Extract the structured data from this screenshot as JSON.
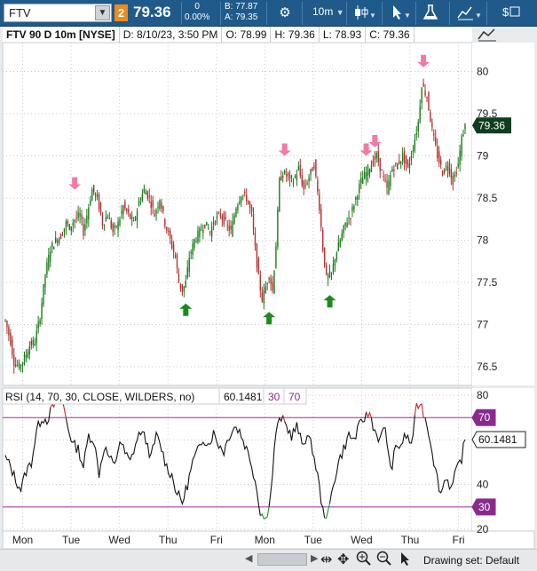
{
  "toolbar": {
    "symbol": "FTV",
    "link_number": "2",
    "last": "79.36",
    "change": "0",
    "change_pct": "0.00%",
    "bid": "B: 77.87",
    "ask": "A: 79.35",
    "interval": "10m",
    "icons": [
      "settings-gear-icon",
      "candlestick-icon",
      "cursor-icon",
      "flask-icon",
      "drawings-icon",
      "dollar-icon"
    ]
  },
  "header": {
    "desc": "FTV 90 D 10m [NYSE]",
    "date": "D: 8/10/23, 3:50 PM",
    "open": "O: 78.99",
    "high": "H: 79.36",
    "low": "L: 78.93",
    "close": "C: 79.36"
  },
  "footer": {
    "drawing_set": "Drawing set: Default"
  },
  "chart_data": [
    {
      "type": "candlestick",
      "price_axis": {
        "ticks": [
          80,
          79.5,
          79,
          78.5,
          78,
          77.5,
          77,
          76.5
        ],
        "range": [
          76.3,
          80.3
        ]
      },
      "last_price_label": "79.36",
      "x_ticks": [
        "Mon",
        "Tue",
        "Wed",
        "Thu",
        "Fri",
        "Mon",
        "Tue",
        "Wed",
        "Thu",
        "Fri"
      ],
      "close_path": [
        [
          0,
          77.05
        ],
        [
          3,
          76.8
        ],
        [
          5,
          76.55
        ],
        [
          8,
          76.5
        ],
        [
          11,
          76.6
        ],
        [
          14,
          76.75
        ],
        [
          17,
          76.8
        ],
        [
          20,
          77.1
        ],
        [
          23,
          77.6
        ],
        [
          26,
          77.9
        ],
        [
          29,
          78.0
        ],
        [
          32,
          78.05
        ],
        [
          35,
          78.2
        ],
        [
          37,
          78.15
        ],
        [
          40,
          78.25
        ],
        [
          43,
          78.3
        ],
        [
          45,
          78.1
        ],
        [
          48,
          78.4
        ],
        [
          50,
          78.6
        ],
        [
          53,
          78.5
        ],
        [
          56,
          78.2
        ],
        [
          59,
          78.3
        ],
        [
          62,
          78.1
        ],
        [
          65,
          78.2
        ],
        [
          68,
          78.4
        ],
        [
          71,
          78.3
        ],
        [
          74,
          78.2
        ],
        [
          77,
          78.45
        ],
        [
          80,
          78.6
        ],
        [
          83,
          78.5
        ],
        [
          86,
          78.3
        ],
        [
          89,
          78.5
        ],
        [
          92,
          78.2
        ],
        [
          95,
          78.0
        ],
        [
          98,
          77.8
        ],
        [
          100,
          77.5
        ],
        [
          102,
          77.4
        ],
        [
          104,
          77.5
        ],
        [
          106,
          77.8
        ],
        [
          109,
          78.0
        ],
        [
          112,
          78.1
        ],
        [
          115,
          78.2
        ],
        [
          118,
          78.1
        ],
        [
          121,
          78.25
        ],
        [
          124,
          78.3
        ],
        [
          127,
          78.2
        ],
        [
          130,
          78.1
        ],
        [
          133,
          78.4
        ],
        [
          136,
          78.55
        ],
        [
          139,
          78.5
        ],
        [
          142,
          78.3
        ],
        [
          144,
          77.9
        ],
        [
          146,
          77.55
        ],
        [
          148,
          77.3
        ],
        [
          150,
          77.45
        ],
        [
          152,
          77.6
        ],
        [
          154,
          77.4
        ],
        [
          156,
          77.95
        ],
        [
          158,
          78.7
        ],
        [
          160,
          78.8
        ],
        [
          163,
          78.75
        ],
        [
          166,
          78.7
        ],
        [
          169,
          78.85
        ],
        [
          172,
          78.6
        ],
        [
          175,
          78.75
        ],
        [
          178,
          78.9
        ],
        [
          181,
          78.4
        ],
        [
          183,
          77.9
        ],
        [
          185,
          77.55
        ],
        [
          188,
          77.6
        ],
        [
          190,
          77.8
        ],
        [
          193,
          78.0
        ],
        [
          196,
          78.2
        ],
        [
          199,
          78.3
        ],
        [
          202,
          78.5
        ],
        [
          205,
          78.7
        ],
        [
          208,
          78.8
        ],
        [
          211,
          78.9
        ],
        [
          214,
          79.0
        ],
        [
          217,
          78.8
        ],
        [
          220,
          78.6
        ],
        [
          223,
          78.85
        ],
        [
          226,
          78.9
        ],
        [
          229,
          79.0
        ],
        [
          232,
          78.85
        ],
        [
          235,
          79.1
        ],
        [
          238,
          79.4
        ],
        [
          240,
          79.85
        ],
        [
          243,
          79.7
        ],
        [
          246,
          79.3
        ],
        [
          249,
          79.0
        ],
        [
          252,
          78.8
        ],
        [
          255,
          78.9
        ],
        [
          258,
          78.7
        ],
        [
          261,
          78.9
        ],
        [
          263,
          79.2
        ],
        [
          265,
          79.36
        ]
      ],
      "signals": [
        {
          "type": "sell",
          "bar": 40,
          "price": 78.6
        },
        {
          "type": "buy",
          "bar": 104,
          "price": 77.25
        },
        {
          "type": "buy",
          "bar": 152,
          "price": 77.15
        },
        {
          "type": "sell",
          "bar": 161,
          "price": 79.0
        },
        {
          "type": "buy",
          "bar": 187,
          "price": 77.35
        },
        {
          "type": "sell",
          "bar": 208,
          "price": 79.0
        },
        {
          "type": "sell",
          "bar": 213,
          "price": 79.1
        },
        {
          "type": "sell",
          "bar": 241,
          "price": 80.05
        }
      ]
    },
    {
      "type": "line",
      "title": "RSI (14, 70, 30, CLOSE, WILDERS, no)",
      "value_label": "60.1481",
      "overbought": 70,
      "oversold": 30,
      "y_ticks": [
        80,
        60,
        40,
        20
      ],
      "range": [
        20,
        82
      ],
      "points": [
        [
          0,
          52
        ],
        [
          3,
          48
        ],
        [
          6,
          42
        ],
        [
          9,
          38
        ],
        [
          12,
          46
        ],
        [
          15,
          50
        ],
        [
          18,
          64
        ],
        [
          21,
          70
        ],
        [
          24,
          69
        ],
        [
          27,
          74
        ],
        [
          30,
          78
        ],
        [
          33,
          77
        ],
        [
          36,
          66
        ],
        [
          39,
          58
        ],
        [
          42,
          56
        ],
        [
          45,
          48
        ],
        [
          48,
          62
        ],
        [
          51,
          60
        ],
        [
          54,
          45
        ],
        [
          57,
          57
        ],
        [
          60,
          52
        ],
        [
          63,
          48
        ],
        [
          66,
          60
        ],
        [
          69,
          54
        ],
        [
          72,
          50
        ],
        [
          75,
          58
        ],
        [
          78,
          64
        ],
        [
          81,
          60
        ],
        [
          84,
          52
        ],
        [
          87,
          62
        ],
        [
          90,
          56
        ],
        [
          93,
          48
        ],
        [
          96,
          44
        ],
        [
          99,
          36
        ],
        [
          102,
          32
        ],
        [
          105,
          40
        ],
        [
          108,
          50
        ],
        [
          111,
          55
        ],
        [
          114,
          61
        ],
        [
          117,
          58
        ],
        [
          120,
          63
        ],
        [
          123,
          58
        ],
        [
          126,
          55
        ],
        [
          129,
          62
        ],
        [
          132,
          66
        ],
        [
          135,
          64
        ],
        [
          138,
          58
        ],
        [
          141,
          52
        ],
        [
          144,
          42
        ],
        [
          147,
          28
        ],
        [
          150,
          24
        ],
        [
          153,
          36
        ],
        [
          156,
          64
        ],
        [
          159,
          70
        ],
        [
          162,
          66
        ],
        [
          165,
          62
        ],
        [
          168,
          66
        ],
        [
          171,
          58
        ],
        [
          174,
          62
        ],
        [
          177,
          56
        ],
        [
          180,
          44
        ],
        [
          183,
          28
        ],
        [
          186,
          26
        ],
        [
          189,
          40
        ],
        [
          192,
          50
        ],
        [
          195,
          56
        ],
        [
          198,
          62
        ],
        [
          201,
          60
        ],
        [
          204,
          66
        ],
        [
          207,
          70
        ],
        [
          210,
          72
        ],
        [
          213,
          64
        ],
        [
          216,
          60
        ],
        [
          219,
          66
        ],
        [
          222,
          46
        ],
        [
          225,
          56
        ],
        [
          228,
          58
        ],
        [
          231,
          62
        ],
        [
          234,
          58
        ],
        [
          237,
          74
        ],
        [
          239,
          77
        ],
        [
          242,
          70
        ],
        [
          245,
          60
        ],
        [
          248,
          46
        ],
        [
          251,
          36
        ],
        [
          254,
          44
        ],
        [
          257,
          38
        ],
        [
          260,
          46
        ],
        [
          263,
          52
        ],
        [
          265,
          60.1481
        ]
      ]
    }
  ]
}
